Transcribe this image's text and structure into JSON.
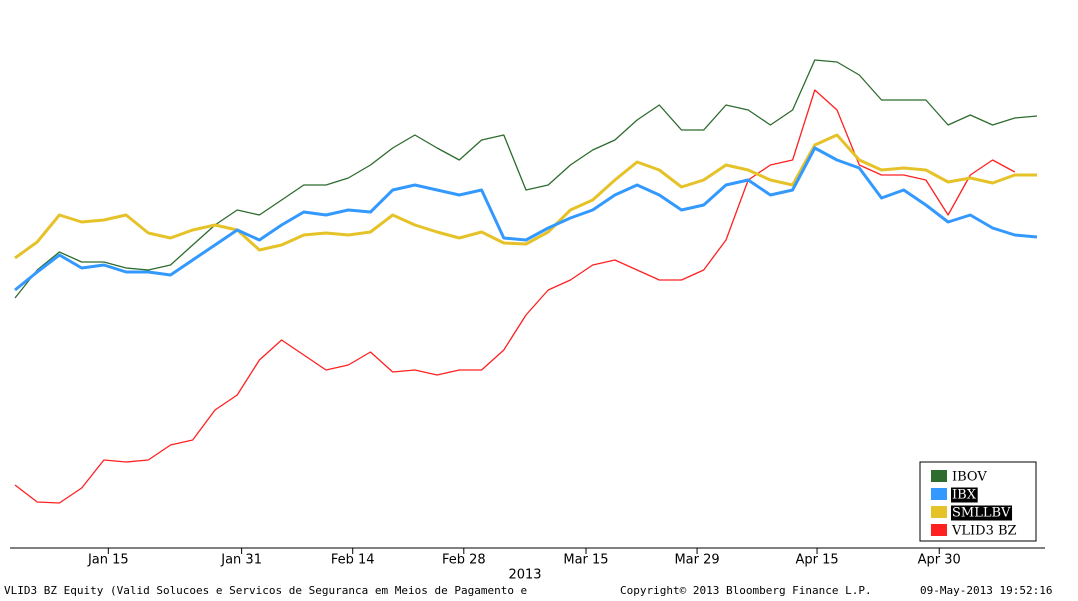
{
  "chart_data": {
    "type": "line",
    "xlim": [
      0,
      46
    ],
    "x": [
      0,
      1,
      2,
      3,
      4,
      5,
      6,
      7,
      8,
      9,
      10,
      11,
      12,
      13,
      14,
      15,
      16,
      17,
      18,
      19,
      20,
      21,
      22,
      23,
      24,
      25,
      26,
      27,
      28,
      29,
      30,
      31,
      32,
      33,
      34,
      35,
      36,
      37,
      38,
      39,
      40,
      41,
      42,
      43,
      44,
      45,
      46
    ],
    "xticks": [
      {
        "value": 4.2,
        "label": "Jan 15"
      },
      {
        "value": 10.2,
        "label": "Jan 31"
      },
      {
        "value": 15.2,
        "label": "Feb 14"
      },
      {
        "value": 20.2,
        "label": "Feb 28"
      },
      {
        "value": 25.7,
        "label": "Mar 15"
      },
      {
        "value": 30.7,
        "label": "Mar 29"
      },
      {
        "value": 36.1,
        "label": "Apr 15"
      },
      {
        "value": 41.6,
        "label": "Apr 30"
      }
    ],
    "xlabel": "2013",
    "ylim": [
      0,
      100
    ],
    "legend": "lower right",
    "series": [
      {
        "name": "IBOV",
        "color": "#2e6b2e",
        "values": [
          49.4,
          55,
          58.6,
          56.6,
          56.6,
          55.4,
          55,
          56,
          60,
          64,
          67,
          66,
          69,
          72,
          72,
          73.4,
          76,
          79.4,
          82,
          79.4,
          77,
          81,
          82,
          71,
          72,
          76,
          79,
          81,
          85,
          88,
          83,
          83,
          88,
          87,
          84,
          87,
          97,
          96.6,
          94,
          89,
          89,
          89,
          84,
          86,
          84,
          85.4,
          85.8
        ]
      },
      {
        "name": "IBX",
        "color": "#3399ff",
        "values": [
          51,
          54.6,
          58,
          55.4,
          56,
          54.6,
          54.6,
          54,
          57,
          60,
          63,
          61,
          64,
          66.6,
          66,
          67,
          66.6,
          71,
          72,
          71,
          70,
          71,
          61.4,
          61,
          63.4,
          65.4,
          67,
          70,
          72,
          70,
          67,
          68,
          72,
          73,
          70,
          71,
          79.4,
          77,
          75.4,
          69.4,
          71,
          68,
          64.6,
          66,
          63.4,
          62,
          61.6
        ]
      },
      {
        "name": "SMLLBV",
        "color": "#e6c229",
        "values": [
          57.4,
          60.6,
          66,
          64.6,
          65,
          66,
          62.4,
          61.4,
          63,
          64,
          63,
          59,
          60,
          62,
          62.4,
          62,
          62.6,
          66,
          64,
          62.6,
          61.4,
          62.6,
          60.4,
          60.2,
          62.6,
          67,
          69,
          73,
          76.6,
          75,
          71.6,
          73,
          76,
          75,
          73,
          72,
          80,
          82,
          77,
          75,
          75.4,
          75,
          72.6,
          73.4,
          72.4,
          74,
          74
        ]
      },
      {
        "name": "VLID3 BZ",
        "color": "#ff2020",
        "values": [
          12,
          8.6,
          8.4,
          11.4,
          17,
          16.6,
          17,
          20,
          21,
          27,
          30,
          37,
          41,
          38,
          35,
          36,
          38.6,
          34.6,
          35,
          34,
          35,
          35,
          39,
          46,
          51,
          53,
          56,
          57,
          55,
          53,
          53,
          55,
          61,
          73,
          76,
          77,
          91,
          87,
          76,
          74,
          74,
          73,
          66,
          74,
          77,
          74.6,
          null
        ]
      }
    ],
    "footer": [
      "VLID3 BZ Equity (Valid Solucoes e Servicos de Seguranca em Meios de Pagamento e",
      "Copyright© 2013 Bloomberg Finance L.P.",
      "09-May-2013 19:52:16"
    ]
  }
}
